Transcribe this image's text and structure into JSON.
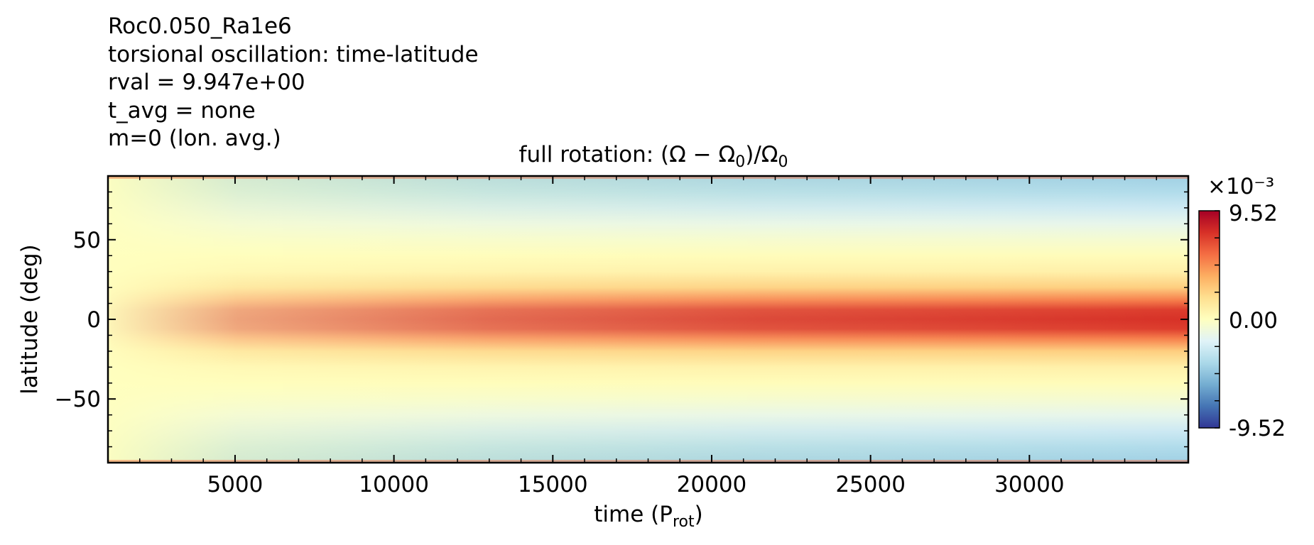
{
  "info_lines": [
    "Roc0.050_Ra1e6",
    "torsional oscillation: time-latitude",
    "rval = 9.947e+00",
    "t_avg = none",
    "m=0 (lon. avg.)"
  ],
  "chart_data": {
    "type": "heatmap",
    "title": {
      "text": "full rotation: (Ω − Ω",
      "sub": "0",
      "mid": ")/Ω",
      "sub2": "0"
    },
    "xlabel": {
      "text": "time (P",
      "sub": "rot",
      "end": ")"
    },
    "ylabel": "latitude (deg)",
    "xlim": [
      1000,
      35000
    ],
    "ylim": [
      -90,
      90
    ],
    "xticks": [
      5000,
      10000,
      15000,
      20000,
      25000,
      30000
    ],
    "xtick_labels": [
      "5000",
      "10000",
      "15000",
      "20000",
      "25000",
      "30000"
    ],
    "yticks": [
      50,
      0,
      -50
    ],
    "ytick_labels": [
      "50",
      "0",
      "−50"
    ],
    "colorbar": {
      "exponent_label": "×10⁻³",
      "max_label": "9.52",
      "mid_label": "0.00",
      "min_label": "-9.52",
      "range": [
        -9.52,
        9.52
      ],
      "colormap": "RdYlBu_r",
      "colors": [
        "#313695",
        "#4575b4",
        "#74add1",
        "#abd9e9",
        "#e0f3f8",
        "#ffffbf",
        "#fee090",
        "#fdae61",
        "#f46d43",
        "#d73027",
        "#a50026"
      ]
    },
    "latitude_profile": [
      {
        "lat": 90,
        "value": -4.2
      },
      {
        "lat": 80,
        "value": -3.6
      },
      {
        "lat": 70,
        "value": -2.6
      },
      {
        "lat": 60,
        "value": -1.5
      },
      {
        "lat": 50,
        "value": -0.6
      },
      {
        "lat": 40,
        "value": 0.2
      },
      {
        "lat": 30,
        "value": 0.9
      },
      {
        "lat": 20,
        "value": 2.6
      },
      {
        "lat": 12,
        "value": 5.2
      },
      {
        "lat": 6,
        "value": 7.2
      },
      {
        "lat": 0,
        "value": 7.6
      },
      {
        "lat": -6,
        "value": 7.2
      },
      {
        "lat": -12,
        "value": 5.2
      },
      {
        "lat": -20,
        "value": 2.6
      },
      {
        "lat": -30,
        "value": 0.9
      },
      {
        "lat": -40,
        "value": 0.2
      },
      {
        "lat": -50,
        "value": -0.6
      },
      {
        "lat": -60,
        "value": -1.5
      },
      {
        "lat": -70,
        "value": -2.6
      },
      {
        "lat": -80,
        "value": -3.6
      },
      {
        "lat": -90,
        "value": -4.2
      }
    ],
    "time_modulation": [
      {
        "t": 1000,
        "factor": 0.1
      },
      {
        "t": 5000,
        "factor": 0.35
      },
      {
        "t": 10000,
        "factor": 0.55
      },
      {
        "t": 15000,
        "factor": 0.7
      },
      {
        "t": 20000,
        "factor": 0.8
      },
      {
        "t": 25000,
        "factor": 0.9
      },
      {
        "t": 30000,
        "factor": 1.0
      },
      {
        "t": 35000,
        "factor": 1.0
      }
    ]
  }
}
